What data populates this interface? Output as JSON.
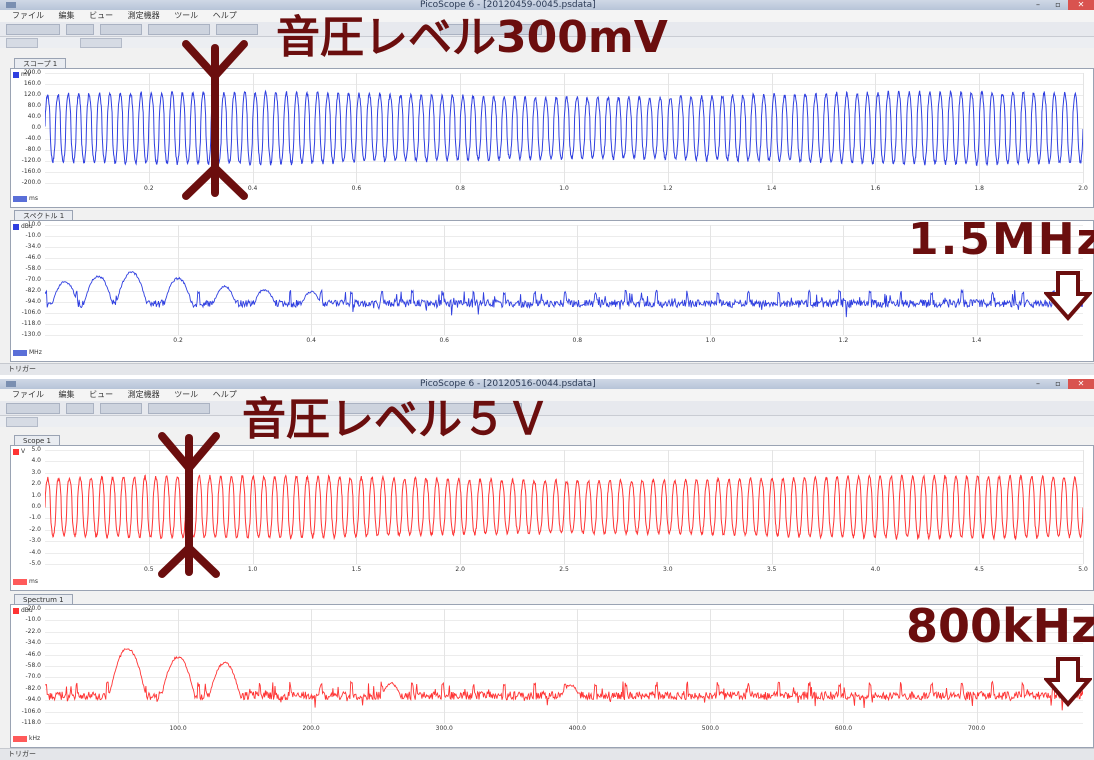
{
  "window1": {
    "title": "PicoScope 6 - [20120459-0045.psdata]",
    "menu": [
      "ファイル",
      "編集",
      "ビュー",
      "測定機器",
      "ツール",
      "ヘルプ"
    ],
    "scope_tab": "スコープ 1",
    "spectrum_tab": "スペクトル 1",
    "status_left": "トリガー",
    "scope_x_unit": "ms",
    "spectrum_x_unit": "MHz",
    "scope_y_unit": "mV",
    "spectrum_y_unit": "dBu"
  },
  "window2": {
    "title": "PicoScope 6 - [20120516-0044.psdata]",
    "menu": [
      "ファイル",
      "編集",
      "ビュー",
      "測定機器",
      "ツール",
      "ヘルプ"
    ],
    "scope_tab": "Scope 1",
    "spectrum_tab": "Spectrum 1",
    "status_left": "トリガー",
    "scope_x_unit": "ms",
    "spectrum_x_unit": "kHz",
    "scope_y_unit": "V",
    "spectrum_y_unit": "dBu"
  },
  "annotations": {
    "level1": "音圧レベル300mV",
    "freq1": "1.5MHz",
    "level2": "音圧レベル５Ｖ",
    "freq2": "800kHz"
  },
  "colors": {
    "scope_blue": "#2f3fe0",
    "scope_red": "#ff3434",
    "annotation": "#6b0e0e"
  },
  "chart_data": [
    {
      "type": "line",
      "title": "スコープ 1",
      "xlabel": "ms",
      "ylabel": "mV",
      "x_ticks": [
        "0.2",
        "0.4",
        "0.6",
        "0.8",
        "1.0",
        "1.2",
        "1.4",
        "1.6",
        "1.8",
        "2.0"
      ],
      "y_ticks": [
        "200.0",
        "160.0",
        "120.0",
        "80.0",
        "40.0",
        "0.0",
        "-40.0",
        "-80.0",
        "-120.0",
        "-160.0",
        "-200.0"
      ],
      "xlim": [
        0,
        2.0
      ],
      "ylim": [
        -200,
        200
      ],
      "series": [
        {
          "amplitude": 120,
          "cycles": 100
        }
      ]
    },
    {
      "type": "line",
      "title": "スペクトル 1",
      "xlabel": "MHz",
      "ylabel": "dBu",
      "x_ticks": [
        "0.2",
        "0.4",
        "0.6",
        "0.8",
        "1.0",
        "1.2",
        "1.4"
      ],
      "y_ticks": [
        "10.0",
        "-10.0",
        "-34.0",
        "-46.0",
        "-58.0",
        "-70.0",
        "-82.0",
        "-94.0",
        "-106.0",
        "-118.0",
        "-130.0"
      ],
      "xlim": [
        0,
        1.56
      ],
      "ylim": [
        -130,
        10
      ],
      "series": [
        {
          "noise_floor": -90,
          "peak_frequencies": [
            0.03,
            0.08,
            0.13,
            0.2,
            0.27,
            0.33,
            0.4
          ],
          "peak_levels": [
            -62,
            -55,
            -50,
            -58,
            -68,
            -72,
            -75
          ]
        }
      ]
    },
    {
      "type": "line",
      "title": "Scope 1",
      "xlabel": "ms",
      "ylabel": "V",
      "x_ticks": [
        "0.5",
        "1.0",
        "1.5",
        "2.0",
        "2.5",
        "3.0",
        "3.5",
        "4.0",
        "4.5",
        "5.0"
      ],
      "y_ticks": [
        "5.0",
        "4.0",
        "3.0",
        "2.0",
        "1.0",
        "0.0",
        "-1.0",
        "-2.0",
        "-3.0",
        "-4.0",
        "-5.0"
      ],
      "xlim": [
        0,
        5.0
      ],
      "ylim": [
        -5,
        5
      ],
      "series": [
        {
          "amplitude": 2.5,
          "cycles": 96
        }
      ]
    },
    {
      "type": "line",
      "title": "Spectrum 1",
      "xlabel": "kHz",
      "ylabel": "dBu",
      "x_ticks": [
        "100.0",
        "200.0",
        "300.0",
        "400.0",
        "500.0",
        "600.0",
        "700.0"
      ],
      "y_ticks": [
        "20.0",
        "-10.0",
        "-22.0",
        "-34.0",
        "-46.0",
        "-58.0",
        "-70.0",
        "-82.0",
        "-94.0",
        "-106.0",
        "-118.0"
      ],
      "xlim": [
        0,
        780
      ],
      "ylim": [
        -118,
        20
      ],
      "series": [
        {
          "noise_floor": -85,
          "peak_frequencies": [
            62,
            100,
            135,
            260,
            395
          ],
          "peak_levels": [
            -28,
            -38,
            -45,
            -70,
            -72
          ]
        }
      ]
    }
  ]
}
